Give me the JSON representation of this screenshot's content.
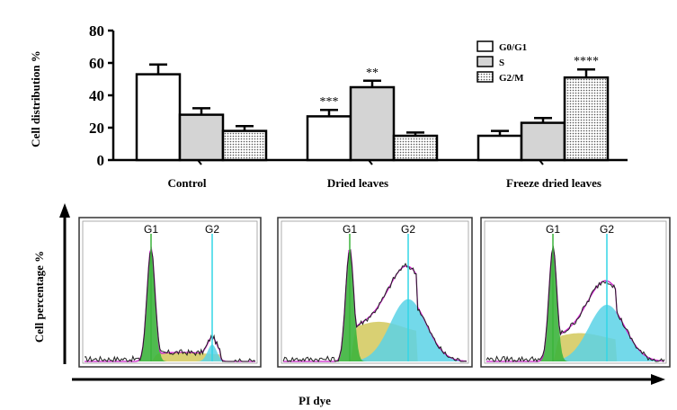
{
  "chart_data": [
    {
      "type": "bar",
      "ylabel": "Cell distribution %",
      "ylim": [
        0,
        80
      ],
      "yticks": [
        0,
        20,
        40,
        60,
        80
      ],
      "categories": [
        "Control",
        "Dried leaves",
        "Freeze dried leaves"
      ],
      "series": [
        {
          "name": "G0/G1",
          "values": [
            53,
            27,
            15
          ],
          "errors": [
            6,
            4,
            3
          ],
          "fill": "#ffffff"
        },
        {
          "name": "S",
          "values": [
            28,
            45,
            23
          ],
          "errors": [
            4,
            4,
            3
          ],
          "fill": "#d4d4d4"
        },
        {
          "name": "G2/M",
          "values": [
            18,
            15,
            51
          ],
          "errors": [
            3,
            2,
            5
          ],
          "fill": "dotted"
        }
      ],
      "annotations": [
        {
          "category": "Dried leaves",
          "series": "G0/G1",
          "text": "***"
        },
        {
          "category": "Dried leaves",
          "series": "S",
          "text": "**"
        },
        {
          "category": "Freeze dried leaves",
          "series": "G2/M",
          "text": "****"
        }
      ],
      "legend": "top-right"
    },
    {
      "type": "area",
      "ylabel": "Cell percentage %",
      "xlabel": "PI dye",
      "gate_labels": [
        "G1",
        "G2"
      ],
      "panels": [
        {
          "g1_peak": 100,
          "s_phase": 8,
          "g2_peak": 15
        },
        {
          "g1_peak": 100,
          "s_phase": 35,
          "g2_peak": 55
        },
        {
          "g1_peak": 100,
          "s_phase": 25,
          "g2_peak": 50
        }
      ],
      "colors": {
        "g1_fill": "#3cb43c",
        "s_fill": "#d2c85a",
        "g2_fill": "#5ad2e6",
        "gate_line": "#33d6e6",
        "envelope": "#cc22cc",
        "trace": "#222222"
      }
    }
  ]
}
